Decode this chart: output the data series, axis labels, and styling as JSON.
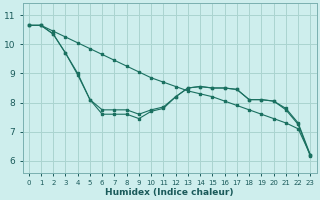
{
  "xlabel": "Humidex (Indice chaleur)",
  "background_color": "#ceeeed",
  "grid_color": "#aad4d0",
  "line_color": "#1a7060",
  "xlim": [
    -0.5,
    23.5
  ],
  "ylim": [
    5.6,
    11.4
  ],
  "yticks": [
    6,
    7,
    8,
    9,
    10,
    11
  ],
  "xticks": [
    0,
    1,
    2,
    3,
    4,
    5,
    6,
    7,
    8,
    9,
    10,
    11,
    12,
    13,
    14,
    15,
    16,
    17,
    18,
    19,
    20,
    21,
    22,
    23
  ],
  "line1_x": [
    0,
    1,
    2,
    3,
    4,
    5,
    6,
    7,
    8,
    9,
    10,
    11,
    12,
    13,
    14,
    15,
    16,
    17,
    18,
    19,
    20,
    21,
    22,
    23
  ],
  "line1_y": [
    10.65,
    10.65,
    10.45,
    10.25,
    10.05,
    9.85,
    9.65,
    9.45,
    9.25,
    9.05,
    8.85,
    8.7,
    8.55,
    8.4,
    8.3,
    8.2,
    8.05,
    7.9,
    7.75,
    7.6,
    7.45,
    7.3,
    7.1,
    6.2
  ],
  "line2_x": [
    0,
    1,
    2,
    3,
    4,
    5,
    6,
    7,
    8,
    9,
    10,
    11,
    12,
    13,
    14,
    15,
    16,
    17,
    18,
    19,
    20,
    21,
    22,
    23
  ],
  "line2_y": [
    10.65,
    10.65,
    10.35,
    9.7,
    8.95,
    8.1,
    7.75,
    7.75,
    7.75,
    7.6,
    7.75,
    7.85,
    8.2,
    8.5,
    8.55,
    8.5,
    8.5,
    8.45,
    8.1,
    8.1,
    8.05,
    7.8,
    7.3,
    6.2
  ],
  "line3_x": [
    0,
    1,
    2,
    3,
    4,
    5,
    6,
    7,
    8,
    9,
    10,
    11,
    12,
    13,
    14,
    15,
    16,
    17,
    18,
    19,
    20,
    21,
    22,
    23
  ],
  "line3_y": [
    10.65,
    10.65,
    10.35,
    9.7,
    9.0,
    8.1,
    7.6,
    7.6,
    7.6,
    7.45,
    7.7,
    7.8,
    8.2,
    8.5,
    8.55,
    8.5,
    8.5,
    8.45,
    8.1,
    8.1,
    8.05,
    7.75,
    7.25,
    6.15
  ]
}
